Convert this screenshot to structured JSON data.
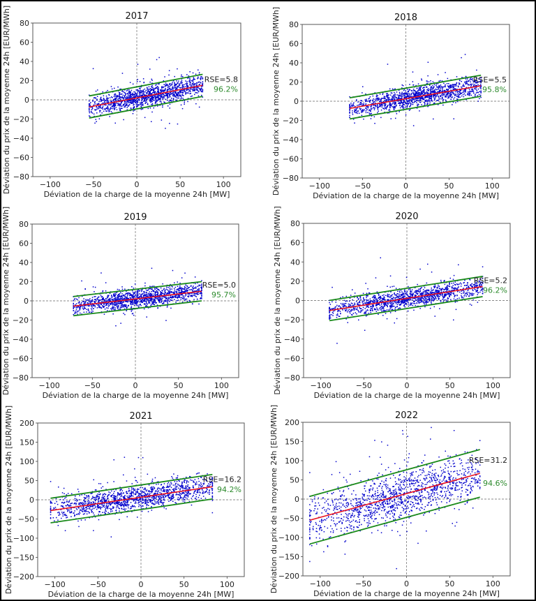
{
  "colors": {
    "points": "#0000cc",
    "regression": "#e8101e",
    "band": "#1a8a1a",
    "percent_text": "#2e8b2e",
    "zero_lines": "#888888"
  },
  "chart_data": [
    {
      "type": "scatter",
      "title": "2017",
      "xlabel": "Déviation de la charge de la moyenne 24h [MW]",
      "ylabel": "Déviation du prix de la moyenne 24h [EUR/MWh]",
      "xlim": [
        -120,
        120
      ],
      "ylim": [
        -80,
        80
      ],
      "xticks": [
        -100,
        -50,
        0,
        50,
        100
      ],
      "xtick_labels": [
        "−100",
        "−50",
        "0",
        "50",
        "100"
      ],
      "yticks": [
        80,
        60,
        40,
        20,
        0,
        -20,
        -40,
        -60,
        -80
      ],
      "ytick_labels": [
        "80",
        "60",
        "40",
        "20",
        "0",
        "−20",
        "−40",
        "−60",
        "−80"
      ],
      "points_x_range": [
        -55,
        76
      ],
      "regression": {
        "slope": 0.172,
        "intercept": 2.0
      },
      "band_halfwidth": 11.5,
      "rse_label": "RSE=5.8",
      "coverage_label": "96.2%",
      "rse_value": 5.8,
      "coverage_percent": 96.2
    },
    {
      "type": "scatter",
      "title": "2018",
      "xlabel": "Déviation de la charge de la moyenne 24h [MW]",
      "ylabel": "Déviation du prix de la moyenne 24h [EUR/MWh]",
      "xlim": [
        -120,
        120
      ],
      "ylim": [
        -80,
        80
      ],
      "xticks": [
        -100,
        -50,
        0,
        50,
        100
      ],
      "xtick_labels": [
        "−100",
        "−50",
        "0",
        "50",
        "100"
      ],
      "yticks": [
        80,
        60,
        40,
        20,
        0,
        -20,
        -40,
        -60,
        -80
      ],
      "ytick_labels": [
        "80",
        "60",
        "40",
        "20",
        "0",
        "−20",
        "−40",
        "−60",
        "−80"
      ],
      "points_x_range": [
        -65,
        87
      ],
      "regression": {
        "slope": 0.155,
        "intercept": 2.6
      },
      "band_halfwidth": 11.0,
      "rse_label": "RSE=5.5",
      "coverage_label": "95.8%",
      "rse_value": 5.5,
      "coverage_percent": 95.8
    },
    {
      "type": "scatter",
      "title": "2019",
      "xlabel": "Déviation de la charge de la moyenne 24h [MW]",
      "ylabel": "Déviation du prix de la moyenne 24h [EUR/MWh]",
      "xlim": [
        -120,
        120
      ],
      "ylim": [
        -80,
        80
      ],
      "xticks": [
        -100,
        -50,
        0,
        50,
        100
      ],
      "xtick_labels": [
        "−100",
        "−50",
        "0",
        "50",
        "100"
      ],
      "yticks": [
        80,
        60,
        40,
        20,
        0,
        -20,
        -40,
        -60,
        -80
      ],
      "ytick_labels": [
        "80",
        "60",
        "40",
        "20",
        "0",
        "−20",
        "−40",
        "−60",
        "−80"
      ],
      "points_x_range": [
        -72,
        77
      ],
      "regression": {
        "slope": 0.104,
        "intercept": 2.0
      },
      "band_halfwidth": 10.0,
      "rse_label": "RSE=5.0",
      "coverage_label": "95.7%",
      "rse_value": 5.0,
      "coverage_percent": 95.7
    },
    {
      "type": "scatter",
      "title": "2020",
      "xlabel": "Déviation de la charge de la moyenne 24h [MW]",
      "ylabel": "Déviation du prix de la moyenne 24h [EUR/MWh]",
      "xlim": [
        -120,
        120
      ],
      "ylim": [
        -80,
        80
      ],
      "xticks": [
        -100,
        -50,
        0,
        50,
        100
      ],
      "xtick_labels": [
        "−100",
        "−50",
        "0",
        "50",
        "100"
      ],
      "yticks": [
        80,
        60,
        40,
        20,
        0,
        -20,
        -40,
        -60,
        -80
      ],
      "ytick_labels": [
        "80",
        "60",
        "40",
        "20",
        "0",
        "−20",
        "−40",
        "−60",
        "−80"
      ],
      "points_x_range": [
        -90,
        88
      ],
      "regression": {
        "slope": 0.14,
        "intercept": 2.2
      },
      "band_halfwidth": 10.5,
      "rse_label": "RSE=5.2",
      "coverage_label": "96.2%",
      "rse_value": 5.2,
      "coverage_percent": 96.2
    },
    {
      "type": "scatter",
      "title": "2021",
      "xlabel": "Déviation de la charge de la moyenne 24h [MW]",
      "ylabel": "Déviation du prix de la moyenne 24h [EUR/MWh]",
      "xlim": [
        -120,
        120
      ],
      "ylim": [
        -200,
        200
      ],
      "xticks": [
        -100,
        -50,
        0,
        50,
        100
      ],
      "xtick_labels": [
        "−100",
        "−50",
        "0",
        "50",
        "100"
      ],
      "yticks": [
        200,
        150,
        100,
        50,
        0,
        -50,
        -100,
        -150,
        -200
      ],
      "ytick_labels": [
        "200",
        "150",
        "100",
        "50",
        "0",
        "−50",
        "−100",
        "−150",
        "−200"
      ],
      "points_x_range": [
        -105,
        83
      ],
      "regression": {
        "slope": 0.33,
        "intercept": 6.6
      },
      "band_halfwidth": 32.0,
      "rse_label": "RSE=16.2",
      "coverage_label": "94.2%",
      "rse_value": 16.2,
      "coverage_percent": 94.2
    },
    {
      "type": "scatter",
      "title": "2022",
      "xlabel": "Déviation de la charge de la moyenne 24h [MW]",
      "ylabel": "Déviation du prix de la moyenne 24h [EUR/MWh]",
      "xlim": [
        -120,
        120
      ],
      "ylim": [
        -200,
        200
      ],
      "xticks": [
        -100,
        -50,
        0,
        50,
        100
      ],
      "xtick_labels": [
        "−100",
        "−50",
        "0",
        "50",
        "100"
      ],
      "yticks": [
        200,
        150,
        100,
        50,
        0,
        -50,
        -100,
        -150,
        -200
      ],
      "ytick_labels": [
        "200",
        "150",
        "100",
        "50",
        "0",
        "−50",
        "−100",
        "−150",
        "−200"
      ],
      "points_x_range": [
        -112,
        85
      ],
      "regression": {
        "slope": 0.619,
        "intercept": 14.4
      },
      "band_halfwidth": 62.0,
      "rse_label": "RSE=31.2",
      "coverage_label": "94.6%",
      "rse_value": 31.2,
      "coverage_percent": 94.6
    }
  ]
}
